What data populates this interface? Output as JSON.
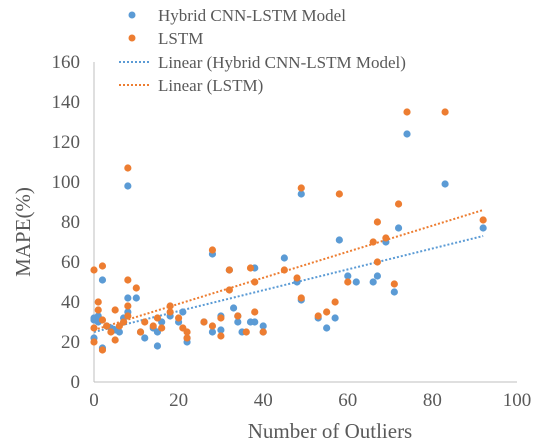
{
  "chart_data": {
    "type": "scatter",
    "title": "",
    "xlabel": "Number of Outliers",
    "ylabel": "MAPE(%)",
    "xlim": [
      0,
      100
    ],
    "ylim": [
      0,
      160
    ],
    "xticks": [
      0,
      20,
      40,
      60,
      80,
      100
    ],
    "yticks": [
      0,
      20,
      40,
      60,
      80,
      100,
      120,
      140,
      160
    ],
    "grid": false,
    "legend_position": "top-right",
    "series": [
      {
        "name": "Hybrid CNN-LSTM Model",
        "color": "#5B9BD5",
        "kind": "points",
        "points": [
          [
            0,
            31
          ],
          [
            0,
            32
          ],
          [
            0,
            22
          ],
          [
            1,
            30
          ],
          [
            1,
            33
          ],
          [
            2,
            17
          ],
          [
            2,
            51
          ],
          [
            3,
            28
          ],
          [
            4,
            27
          ],
          [
            5,
            26
          ],
          [
            6,
            25
          ],
          [
            7,
            30
          ],
          [
            7,
            32
          ],
          [
            8,
            98
          ],
          [
            8,
            42
          ],
          [
            8,
            35
          ],
          [
            10,
            42
          ],
          [
            11,
            25
          ],
          [
            12,
            22
          ],
          [
            14,
            27
          ],
          [
            15,
            18
          ],
          [
            15,
            25
          ],
          [
            16,
            30
          ],
          [
            18,
            33
          ],
          [
            20,
            30
          ],
          [
            21,
            35
          ],
          [
            22,
            22
          ],
          [
            22,
            20
          ],
          [
            26,
            30
          ],
          [
            28,
            64
          ],
          [
            28,
            25
          ],
          [
            30,
            26
          ],
          [
            30,
            33
          ],
          [
            32,
            56
          ],
          [
            33,
            37
          ],
          [
            34,
            33
          ],
          [
            34,
            30
          ],
          [
            35,
            25
          ],
          [
            37,
            30
          ],
          [
            38,
            57
          ],
          [
            38,
            30
          ],
          [
            40,
            28
          ],
          [
            40,
            25
          ],
          [
            45,
            62
          ],
          [
            48,
            50
          ],
          [
            49,
            94
          ],
          [
            49,
            41
          ],
          [
            53,
            32
          ],
          [
            55,
            27
          ],
          [
            57,
            32
          ],
          [
            58,
            71
          ],
          [
            60,
            53
          ],
          [
            62,
            50
          ],
          [
            66,
            50
          ],
          [
            67,
            53
          ],
          [
            69,
            70
          ],
          [
            71,
            45
          ],
          [
            72,
            77
          ],
          [
            74,
            124
          ],
          [
            83,
            99
          ],
          [
            92,
            77
          ]
        ]
      },
      {
        "name": "LSTM",
        "color": "#ED7D31",
        "kind": "points",
        "points": [
          [
            0,
            56
          ],
          [
            0,
            27
          ],
          [
            0,
            20
          ],
          [
            1,
            40
          ],
          [
            1,
            36
          ],
          [
            2,
            58
          ],
          [
            2,
            31
          ],
          [
            2,
            16
          ],
          [
            3,
            28
          ],
          [
            4,
            25
          ],
          [
            5,
            36
          ],
          [
            5,
            21
          ],
          [
            6,
            28
          ],
          [
            7,
            30
          ],
          [
            8,
            107
          ],
          [
            8,
            51
          ],
          [
            8,
            38
          ],
          [
            8,
            33
          ],
          [
            10,
            47
          ],
          [
            11,
            25
          ],
          [
            12,
            30
          ],
          [
            14,
            28
          ],
          [
            15,
            32
          ],
          [
            16,
            27
          ],
          [
            18,
            38
          ],
          [
            18,
            35
          ],
          [
            20,
            32
          ],
          [
            21,
            27
          ],
          [
            22,
            25
          ],
          [
            22,
            22
          ],
          [
            26,
            30
          ],
          [
            28,
            66
          ],
          [
            28,
            28
          ],
          [
            30,
            32
          ],
          [
            30,
            23
          ],
          [
            32,
            56
          ],
          [
            32,
            46
          ],
          [
            34,
            33
          ],
          [
            36,
            25
          ],
          [
            37,
            57
          ],
          [
            38,
            50
          ],
          [
            38,
            35
          ],
          [
            40,
            25
          ],
          [
            45,
            56
          ],
          [
            48,
            52
          ],
          [
            49,
            97
          ],
          [
            49,
            42
          ],
          [
            53,
            33
          ],
          [
            55,
            35
          ],
          [
            57,
            40
          ],
          [
            58,
            94
          ],
          [
            60,
            50
          ],
          [
            66,
            70
          ],
          [
            67,
            80
          ],
          [
            67,
            60
          ],
          [
            69,
            72
          ],
          [
            71,
            49
          ],
          [
            72,
            89
          ],
          [
            74,
            135
          ],
          [
            83,
            135
          ],
          [
            92,
            81
          ]
        ]
      },
      {
        "name": "Linear (Hybrid CNN-LSTM Model)",
        "color": "#5B9BD5",
        "kind": "trendline",
        "points": [
          [
            0,
            25
          ],
          [
            92,
            73
          ]
        ]
      },
      {
        "name": "Linear (LSTM)",
        "color": "#ED7D31",
        "kind": "trendline",
        "points": [
          [
            0,
            26
          ],
          [
            92,
            86
          ]
        ]
      }
    ]
  }
}
